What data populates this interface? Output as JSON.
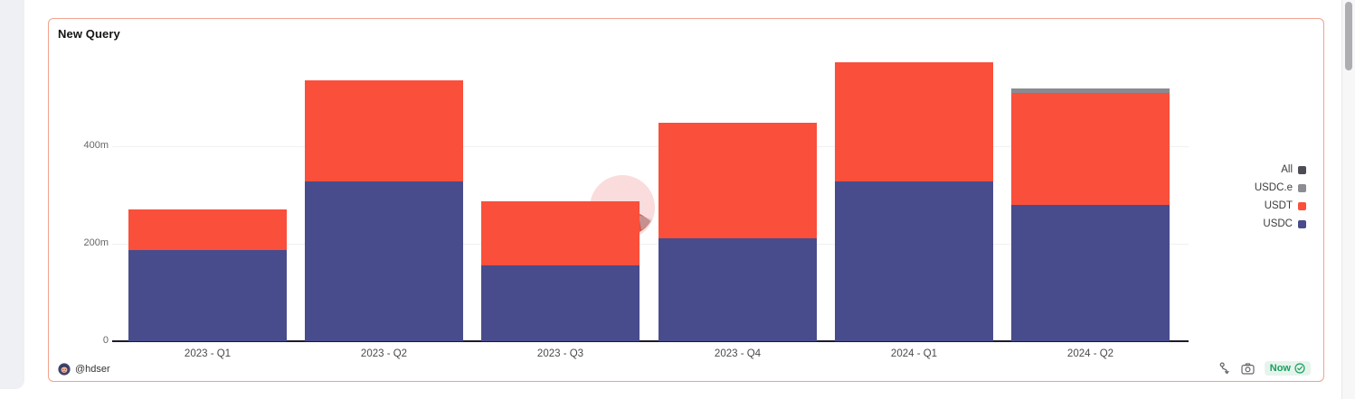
{
  "card": {
    "title": "New Query"
  },
  "footer": {
    "author": "@hdser",
    "actions": {
      "now_label": "Now",
      "fork_icon": "fork-icon",
      "camera_icon": "camera-icon",
      "check_icon": "check-circle-icon"
    }
  },
  "colors": {
    "usdc": "#484C8C",
    "usdt": "#F94F3B",
    "usdce": "#8A8A90",
    "all": "#4D4D55",
    "card_border": "#F2A18D",
    "badge_green": "#17A05E",
    "badge_bg": "#E7F4ED"
  },
  "chart_data": {
    "type": "bar",
    "stacked": true,
    "title": "New Query",
    "xlabel": "",
    "ylabel": "",
    "unit": "m",
    "ylim": [
      0,
      580
    ],
    "grid": "horizontal",
    "legend_position": "right",
    "watermark": "Dune",
    "categories": [
      "2023 - Q1",
      "2023 - Q2",
      "2023 - Q3",
      "2023 - Q4",
      "2024 - Q1",
      "2024 - Q2"
    ],
    "series": [
      {
        "name": "USDC",
        "color": "#484C8C",
        "values": [
          187,
          327,
          155,
          212,
          328,
          279
        ]
      },
      {
        "name": "USDT",
        "color": "#F94F3B",
        "values": [
          84,
          208,
          132,
          237,
          244,
          230
        ]
      },
      {
        "name": "USDC.e",
        "color": "#8A8A90",
        "values": [
          0,
          0,
          0,
          0,
          0,
          10
        ]
      }
    ],
    "totals": [
      271,
      535,
      287,
      449,
      572,
      519
    ],
    "y_ticks": [
      {
        "label": "0",
        "value": 0
      },
      {
        "label": "200m",
        "value": 200
      },
      {
        "label": "400m",
        "value": 400
      }
    ],
    "legend": [
      {
        "label": "All",
        "color": "#4D4D55"
      },
      {
        "label": "USDC.e",
        "color": "#8C8C92"
      },
      {
        "label": "USDT",
        "color": "#F94F3B"
      },
      {
        "label": "USDC",
        "color": "#484C8C"
      }
    ]
  }
}
